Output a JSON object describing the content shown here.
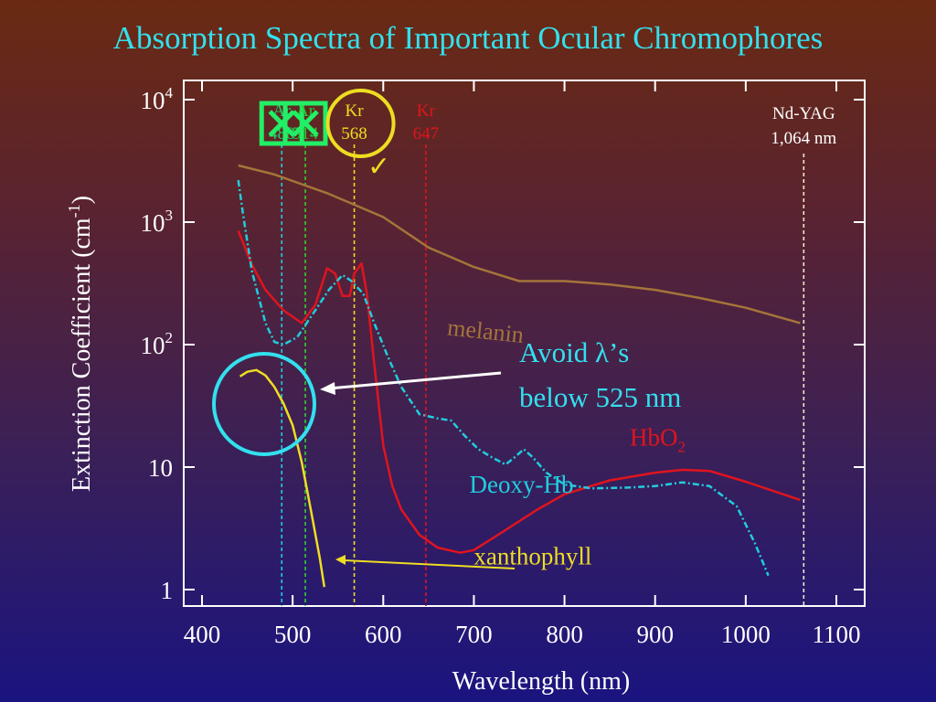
{
  "slide": {
    "title": "Absorption Spectra of Important Ocular Chromophores"
  },
  "chart_data": {
    "type": "line",
    "title": "Absorption Spectra of Important Ocular Chromophores",
    "xlabel": "Wavelength (nm)",
    "ylabel": "Extinction Coefficient (cm-1)",
    "ylabel_base": "Extinction Coefficient (cm",
    "ylabel_sup": "-1",
    "ylabel_end": ")",
    "xlim": [
      400,
      1100
    ],
    "ylim": [
      1,
      10000
    ],
    "yscale": "log",
    "grid": false,
    "x_ticks": [
      400,
      500,
      600,
      700,
      800,
      900,
      1000,
      1100
    ],
    "y_ticks": [
      {
        "value": 1,
        "base": "1",
        "sup": ""
      },
      {
        "value": 10,
        "base": "10",
        "sup": ""
      },
      {
        "value": 100,
        "base": "10",
        "sup": "2"
      },
      {
        "value": 1000,
        "base": "10",
        "sup": "3"
      },
      {
        "value": 10000,
        "base": "10",
        "sup": "4"
      }
    ],
    "series": [
      {
        "name": "melanin",
        "label_base": "melanin",
        "label_sub": "",
        "color": "#a5743a",
        "style": "solid",
        "label_at": [
          670,
          120
        ],
        "points": [
          [
            440,
            2900
          ],
          [
            480,
            2450
          ],
          [
            540,
            1700
          ],
          [
            600,
            1100
          ],
          [
            650,
            620
          ],
          [
            700,
            430
          ],
          [
            750,
            330
          ],
          [
            800,
            330
          ],
          [
            850,
            310
          ],
          [
            900,
            280
          ],
          [
            950,
            240
          ],
          [
            1000,
            200
          ],
          [
            1060,
            150
          ]
        ]
      },
      {
        "name": "HbO2",
        "label_base": "HbO",
        "label_sub": "2",
        "color": "#e0141e",
        "style": "solid",
        "label_at": [
          872,
          15
        ],
        "points": [
          [
            440,
            850
          ],
          [
            455,
            450
          ],
          [
            470,
            280
          ],
          [
            490,
            190
          ],
          [
            510,
            150
          ],
          [
            525,
            210
          ],
          [
            538,
            420
          ],
          [
            547,
            380
          ],
          [
            555,
            250
          ],
          [
            563,
            250
          ],
          [
            568,
            380
          ],
          [
            576,
            460
          ],
          [
            582,
            260
          ],
          [
            590,
            70
          ],
          [
            600,
            15
          ],
          [
            610,
            7
          ],
          [
            620,
            4.5
          ],
          [
            640,
            2.8
          ],
          [
            660,
            2.2
          ],
          [
            685,
            2.0
          ],
          [
            700,
            2.1
          ],
          [
            730,
            2.9
          ],
          [
            770,
            4.5
          ],
          [
            800,
            6
          ],
          [
            850,
            7.8
          ],
          [
            900,
            9
          ],
          [
            930,
            9.5
          ],
          [
            960,
            9.3
          ],
          [
            1000,
            7.6
          ],
          [
            1060,
            5.4
          ]
        ]
      },
      {
        "name": "Deoxy-Hb",
        "label_base": "Deoxy-Hb",
        "label_sub": "",
        "color": "#22ccdd",
        "style": "dashdot",
        "label_at": [
          695,
          6.2
        ],
        "points": [
          [
            440,
            2200
          ],
          [
            445,
            1200
          ],
          [
            455,
            400
          ],
          [
            470,
            150
          ],
          [
            480,
            105
          ],
          [
            490,
            100
          ],
          [
            505,
            115
          ],
          [
            525,
            190
          ],
          [
            540,
            280
          ],
          [
            555,
            370
          ],
          [
            565,
            330
          ],
          [
            578,
            260
          ],
          [
            590,
            150
          ],
          [
            605,
            80
          ],
          [
            620,
            45
          ],
          [
            640,
            27
          ],
          [
            660,
            25
          ],
          [
            675,
            24
          ],
          [
            690,
            18
          ],
          [
            705,
            14
          ],
          [
            720,
            12
          ],
          [
            735,
            10.5
          ],
          [
            745,
            12
          ],
          [
            755,
            14
          ],
          [
            765,
            12
          ],
          [
            780,
            9
          ],
          [
            800,
            7.2
          ],
          [
            830,
            6.7
          ],
          [
            870,
            6.8
          ],
          [
            900,
            7
          ],
          [
            930,
            7.5
          ],
          [
            960,
            7
          ],
          [
            990,
            4.8
          ],
          [
            1010,
            2.4
          ],
          [
            1025,
            1.3
          ]
        ]
      },
      {
        "name": "xanthophyll",
        "label_base": "xanthophyll",
        "label_sub": "",
        "color": "#eedd22",
        "style": "solid",
        "label_at": [
          700,
          1.6
        ],
        "points": [
          [
            442,
            55
          ],
          [
            450,
            60
          ],
          [
            460,
            62
          ],
          [
            470,
            56
          ],
          [
            480,
            45
          ],
          [
            490,
            33
          ],
          [
            500,
            22
          ],
          [
            510,
            11
          ],
          [
            520,
            4.5
          ],
          [
            530,
            1.8
          ],
          [
            535,
            1.05
          ]
        ]
      }
    ],
    "laser_lines": [
      {
        "name": "Ar 488",
        "line1": "Ar",
        "line2": "488",
        "x": 488,
        "color": "#22ccdd",
        "label_color": "#22cc66",
        "status": "crossed",
        "label_y": 1
      },
      {
        "name": "Ar 514",
        "line1": "Ar",
        "line2": "514",
        "x": 514,
        "color": "#33cc33",
        "label_color": "#22cc33",
        "status": "crossed",
        "label_y": 1
      },
      {
        "name": "Kr 568",
        "line1": "Kr",
        "line2": "568",
        "x": 568,
        "color": "#eedd22",
        "label_color": "#eedd22",
        "status": "approved",
        "label_y": 1
      },
      {
        "name": "Kr 647",
        "line1": "Kr",
        "line2": "647",
        "x": 647,
        "color": "#e0141e",
        "label_color": "#e0141e",
        "status": "none",
        "label_y": 1
      },
      {
        "name": "Nd-YAG 1,064 nm",
        "line1": "Nd-YAG",
        "line2": "1,064 nm",
        "x": 1064,
        "color": "#f0e6c8",
        "label_color": "#ffffff",
        "status": "none",
        "label_y": 2
      }
    ],
    "annotations": {
      "callout_line1": "Avoid λ’s",
      "callout_line2": "below 525 nm",
      "callout_color": "#33e0ee"
    },
    "check_mark": "✓"
  }
}
